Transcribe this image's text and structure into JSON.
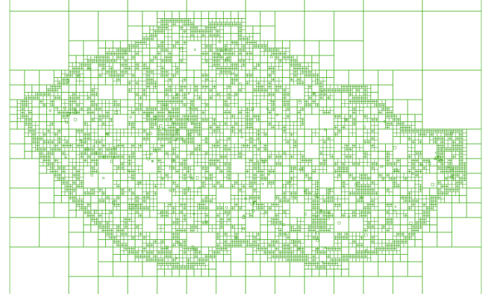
{
  "map": {
    "type": "quadtree-grid",
    "region": "Czech Republic",
    "stroke_color": "#4db52a",
    "dense_stroke_color": "#3fa51d",
    "background_color": "#ffffff"
  }
}
